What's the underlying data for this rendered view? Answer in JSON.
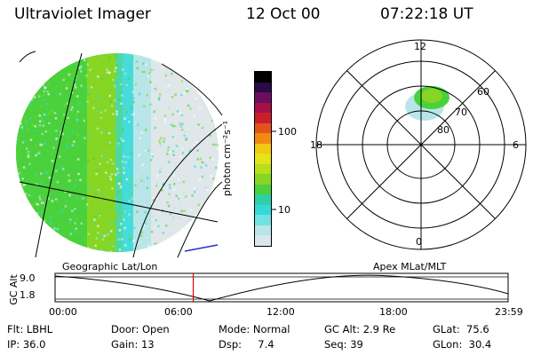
{
  "header": {
    "instrument": "Ultraviolet Imager",
    "date": "12 Oct 00",
    "time": "07:22:18 UT"
  },
  "left_panel": {
    "caption": "Geographic Lat/Lon"
  },
  "right_panel": {
    "caption": "Apex MLat/MLT",
    "mlt_labels": {
      "top": "12",
      "right": "6",
      "bottom": "0",
      "left": "18"
    },
    "mlat_labels": [
      "60",
      "70",
      "80"
    ]
  },
  "colorbar": {
    "label": "photon cm⁻²s⁻¹",
    "ticks": [
      "100",
      "10"
    ],
    "colors": [
      "#d9e6ec",
      "#b8e6e8",
      "#6fe3df",
      "#34d8d8",
      "#2fd0a7",
      "#4ad13c",
      "#86d623",
      "#b7df1e",
      "#e3e41a",
      "#f2c814",
      "#f08a12",
      "#e3531d",
      "#cc1e2a",
      "#a80f46",
      "#6b0e5f",
      "#2b0a45",
      "#000000"
    ]
  },
  "timeline": {
    "ylabel": "GC Alt",
    "ymax": "9.0",
    "ymin": "1.8",
    "xticks": [
      "00:00",
      "06:00",
      "12:00",
      "18:00",
      "23:59"
    ],
    "current_time_fraction": 0.305
  },
  "status": {
    "col1": [
      "Flt: LBHL",
      "IP: 36.0"
    ],
    "col2": [
      "Door: Open",
      "Gain: 13"
    ],
    "col3": [
      "Mode: Normal",
      "Dsp:     7.4"
    ],
    "col4": [
      "GC Alt: 2.9 Re",
      "Seq: 39"
    ],
    "col5": [
      "GLat:  75.6",
      "GLon:  30.4"
    ]
  }
}
